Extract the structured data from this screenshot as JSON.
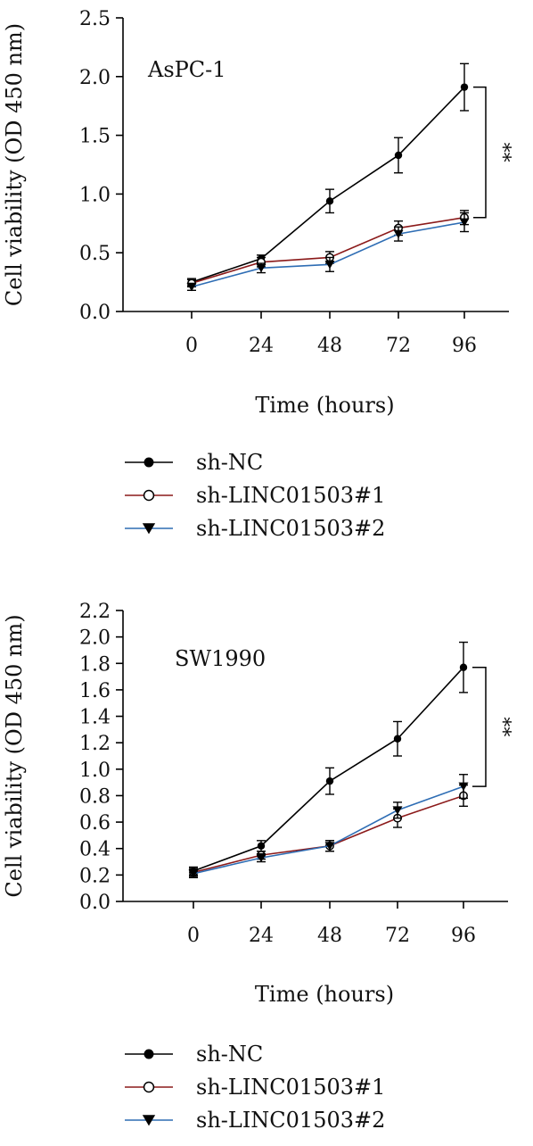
{
  "chart_data": [
    {
      "type": "line",
      "panel_label": "AsPC-1",
      "xlabel": "Time (hours)",
      "ylabel": "Cell viability (OD 450 nm)",
      "categories": [
        "0",
        "24",
        "48",
        "72",
        "96"
      ],
      "ylim": [
        0,
        2.5
      ],
      "yticks": [
        "0.0",
        "0.5",
        "1.0",
        "1.5",
        "2.0",
        "2.5"
      ],
      "grid": false,
      "significance": "**",
      "series": [
        {
          "name": "sh-NC",
          "color": "#000000",
          "marker": "filled-circle",
          "values": [
            0.25,
            0.45,
            0.94,
            1.33,
            1.91
          ],
          "errors": [
            0.03,
            0.03,
            0.1,
            0.15,
            0.2
          ]
        },
        {
          "name": "sh-LINC01503#1",
          "color": "#8b1a1a",
          "marker": "open-circle",
          "values": [
            0.24,
            0.42,
            0.46,
            0.71,
            0.8
          ],
          "errors": [
            0.03,
            0.04,
            0.05,
            0.06,
            0.06
          ]
        },
        {
          "name": "sh-LINC01503#2",
          "color": "#2e6db4",
          "marker": "down-triangle",
          "values": [
            0.21,
            0.37,
            0.4,
            0.66,
            0.76
          ],
          "errors": [
            0.03,
            0.04,
            0.06,
            0.06,
            0.08
          ]
        }
      ]
    },
    {
      "type": "line",
      "panel_label": "SW1990",
      "xlabel": "Time (hours)",
      "ylabel": "Cell viability (OD 450 nm)",
      "categories": [
        "0",
        "24",
        "48",
        "72",
        "96"
      ],
      "ylim": [
        0,
        2.2
      ],
      "yticks": [
        "0.0",
        "0.2",
        "0.4",
        "0.6",
        "0.8",
        "1.0",
        "1.2",
        "1.4",
        "1.6",
        "1.8",
        "2.0",
        "2.2"
      ],
      "grid": false,
      "significance": "**",
      "series": [
        {
          "name": "sh-NC",
          "color": "#000000",
          "marker": "filled-circle",
          "values": [
            0.23,
            0.42,
            0.91,
            1.23,
            1.77
          ],
          "errors": [
            0.03,
            0.04,
            0.1,
            0.13,
            0.19
          ]
        },
        {
          "name": "sh-LINC01503#1",
          "color": "#8b1a1a",
          "marker": "open-circle",
          "values": [
            0.22,
            0.35,
            0.42,
            0.63,
            0.8
          ],
          "errors": [
            0.03,
            0.03,
            0.04,
            0.07,
            0.08
          ]
        },
        {
          "name": "sh-LINC01503#2",
          "color": "#2e6db4",
          "marker": "down-triangle",
          "values": [
            0.21,
            0.33,
            0.42,
            0.69,
            0.87
          ],
          "errors": [
            0.03,
            0.03,
            0.04,
            0.06,
            0.09
          ]
        }
      ]
    }
  ]
}
